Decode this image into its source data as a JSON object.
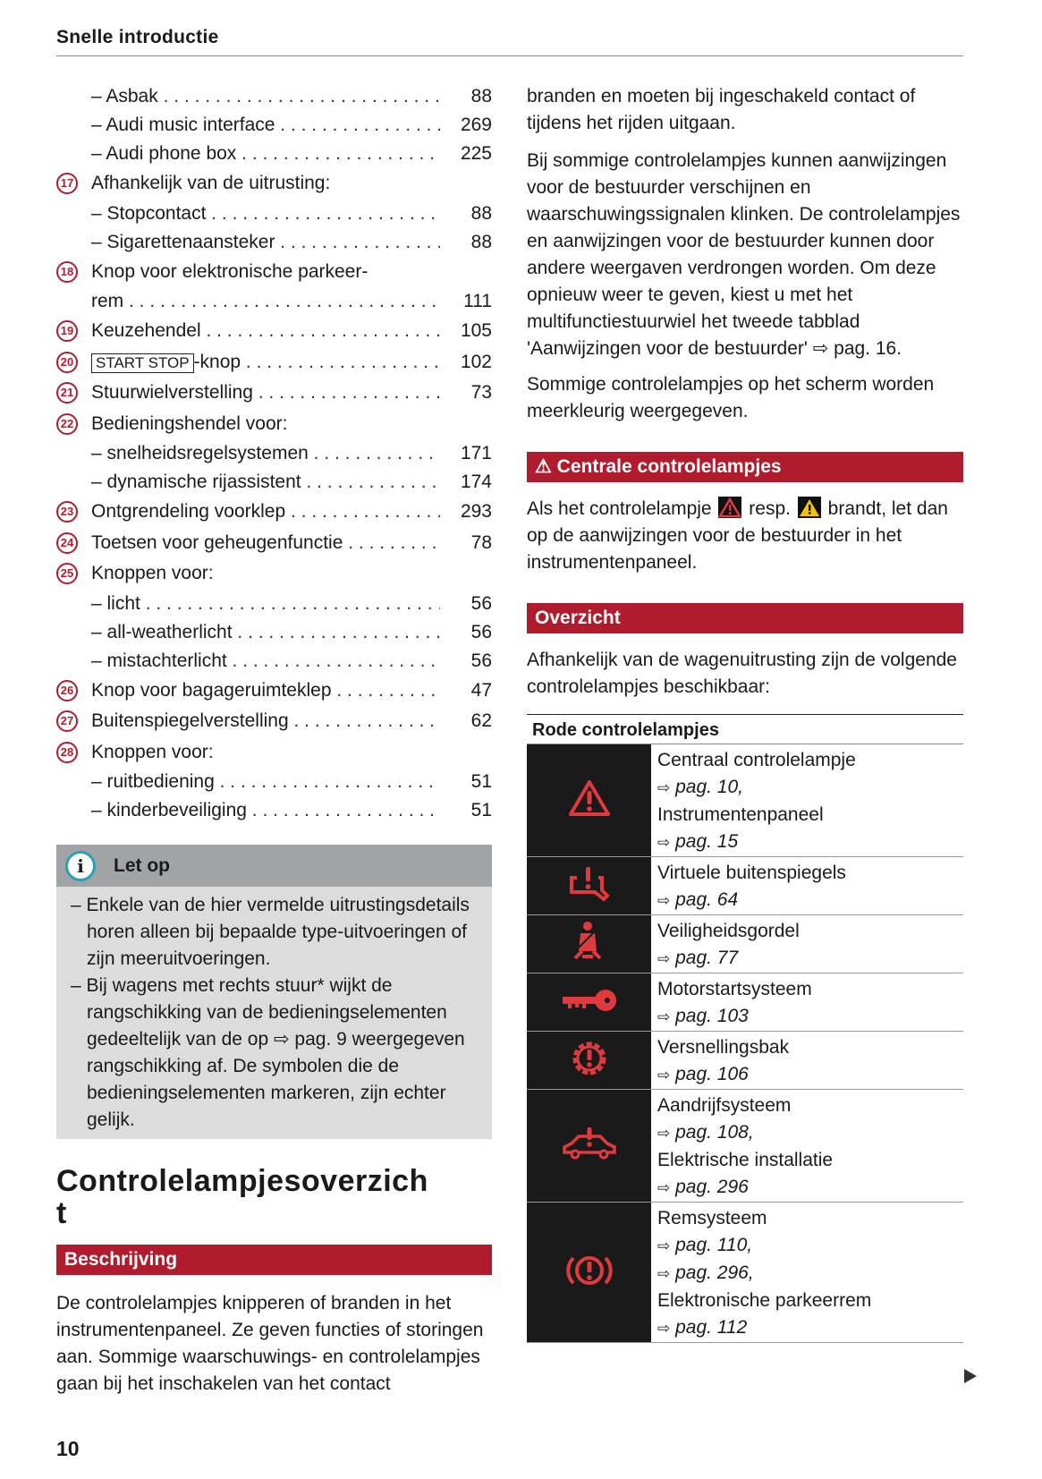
{
  "header": {
    "title": "Snelle introductie"
  },
  "page_number": "10",
  "index": [
    {
      "n": "",
      "label": "– Asbak",
      "page": "88"
    },
    {
      "n": "",
      "label": "– Audi music interface",
      "page": "269"
    },
    {
      "n": "",
      "label": "– Audi phone box",
      "page": "225"
    },
    {
      "n": "17",
      "label": "Afhankelijk van de uitrusting:",
      "page": ""
    },
    {
      "n": "",
      "label": "– Stopcontact",
      "page": "88"
    },
    {
      "n": "",
      "label": "– Sigarettenaansteker",
      "page": "88"
    },
    {
      "n": "18",
      "label": "Knop voor elektronische parkeer-",
      "page": ""
    },
    {
      "n": "",
      "label": "rem",
      "page": "111"
    },
    {
      "n": "19",
      "label": "Keuzehendel",
      "page": "105"
    },
    {
      "n": "20",
      "label": "-knop",
      "key": "START STOP",
      "page": "102"
    },
    {
      "n": "21",
      "label": "Stuurwielverstelling",
      "page": "73"
    },
    {
      "n": "22",
      "label": "Bedieningshendel voor:",
      "page": ""
    },
    {
      "n": "",
      "label": "– snelheidsregelsystemen",
      "page": "171"
    },
    {
      "n": "",
      "label": "– dynamische rijassistent",
      "page": "174"
    },
    {
      "n": "23",
      "label": "Ontgrendeling voorklep",
      "page": "293"
    },
    {
      "n": "24",
      "label": "Toetsen voor geheugenfunctie",
      "page": "78"
    },
    {
      "n": "25",
      "label": "Knoppen voor:",
      "page": ""
    },
    {
      "n": "",
      "label": "– licht",
      "page": "56"
    },
    {
      "n": "",
      "label": "– all-weatherlicht",
      "page": "56"
    },
    {
      "n": "",
      "label": "– mistachterlicht",
      "page": "56"
    },
    {
      "n": "26",
      "label": "Knop voor bagageruimteklep",
      "page": "47"
    },
    {
      "n": "27",
      "label": "Buitenspiegelverstelling",
      "page": "62"
    },
    {
      "n": "28",
      "label": "Knoppen voor:",
      "page": ""
    },
    {
      "n": "",
      "label": "– ruitbediening",
      "page": "51"
    },
    {
      "n": "",
      "label": "– kinderbeveiliging",
      "page": "51"
    }
  ],
  "note": {
    "title": "Let op",
    "icon": "info-icon",
    "items": [
      "– Enkele van de hier vermelde uitrustingsdetails horen alleen bij bepaalde type-uitvoeringen of zijn meeruitvoeringen.",
      "– Bij wagens met rechts stuur* wijkt de rangschikking van de bedieningselementen gedeeltelijk van de op ⇨ pag. 9 weergegeven rangschikking af. De symbolen die de bedieningselementen markeren, zijn echter gelijk."
    ]
  },
  "section_title": "Controlelampjesoverzicht",
  "beschrijving": {
    "title": "Beschrijving",
    "text": "De controlelampjes knipperen of branden in het instrumentenpaneel. Ze geven functies of storingen aan. Sommige waarschuwings- en controlelampjes gaan bij het inschakelen van het contact"
  },
  "right": {
    "p1": "branden en moeten bij ingeschakeld contact of tijdens het rijden uitgaan.",
    "p2": "Bij sommige controlelampjes kunnen aanwijzingen voor de bestuurder verschijnen en waarschuwingssignalen klinken. De controlelampjes en aanwijzingen voor de bestuurder kunnen door andere weergaven verdrongen worden. Om deze opnieuw weer te geven, kiest u met het multifunctiestuurwiel het tweede tabblad 'Aanwijzingen voor de bestuurder' ⇨ pag. 16.",
    "p3": "Sommige controlelampjes op het scherm worden meerkleurig weergegeven.",
    "centrale_title": "⚠ Centrale controlelampjes",
    "centrale_a": "Als het controlelampje",
    "centrale_b": "resp.",
    "centrale_c": "brandt, let dan op de aanwijzingen voor de bestuurder in het instrumentenpaneel.",
    "overzicht_title": "Overzicht",
    "overzicht_text": "Afhankelijk van de wagenuitrusting zijn de volgende controlelampjes beschikbaar:"
  },
  "table": {
    "header": "Rode controlelampjes",
    "rows": [
      {
        "icon": "warning-triangle-icon",
        "lines": [
          [
            "Centraal controlelampje",
            ""
          ],
          [
            "",
            "pag. 10,"
          ],
          [
            "Instrumentenpaneel",
            ""
          ],
          [
            "",
            "pag. 15"
          ]
        ]
      },
      {
        "icon": "mirror-warning-icon",
        "lines": [
          [
            "Virtuele buitenspiegels",
            ""
          ],
          [
            "",
            "pag. 64"
          ]
        ]
      },
      {
        "icon": "seatbelt-icon",
        "lines": [
          [
            "Veiligheidsgordel",
            ""
          ],
          [
            "",
            "pag. 77"
          ]
        ]
      },
      {
        "icon": "key-icon",
        "lines": [
          [
            "Motorstartsysteem",
            ""
          ],
          [
            "",
            "pag. 103"
          ]
        ]
      },
      {
        "icon": "gearbox-warning-icon",
        "lines": [
          [
            "Versnellingsbak",
            ""
          ],
          [
            "",
            "pag. 106"
          ]
        ]
      },
      {
        "icon": "car-warning-icon",
        "lines": [
          [
            "Aandrijfsysteem",
            ""
          ],
          [
            "",
            "pag. 108,"
          ],
          [
            "Elektrische installatie",
            ""
          ],
          [
            "",
            "pag. 296"
          ]
        ]
      },
      {
        "icon": "brake-warning-icon",
        "lines": [
          [
            "Remsysteem",
            ""
          ],
          [
            "",
            "pag. 110,"
          ],
          [
            "",
            "pag. 296,"
          ],
          [
            "Elektronische parkeerrem",
            ""
          ],
          [
            "",
            "pag. 112"
          ]
        ]
      }
    ]
  },
  "colors": {
    "accent": "#b01c2e",
    "note_header": "#a1a4a6",
    "note_body": "#dcdcdc",
    "icon_bg": "#1a1a1a",
    "lamp_red": "#e03a3e"
  }
}
